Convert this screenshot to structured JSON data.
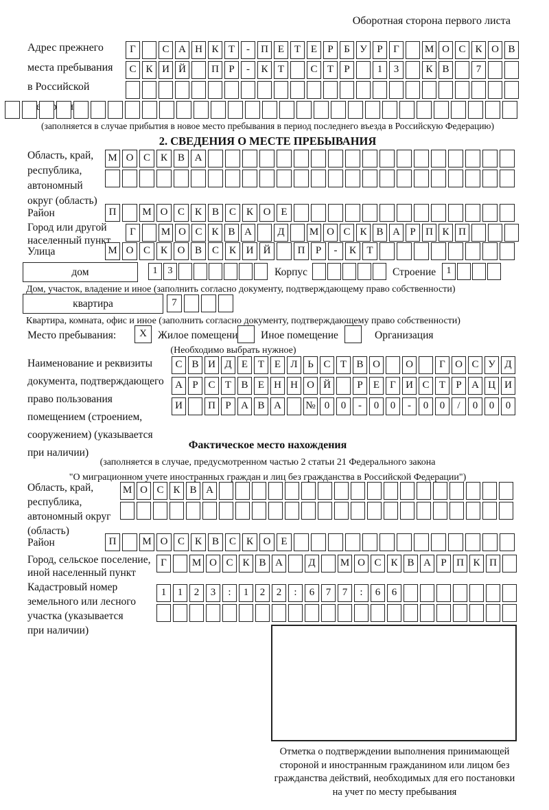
{
  "page": {
    "side_note": "Оборотная сторона первого листа"
  },
  "section1": {
    "label": "Адрес прежнего\nместа пребывания\nв Российской\nФедерации",
    "rows": [
      {
        "chars": "Г САНКТ-ПЕТЕРБУРГ МОСКОВ",
        "len": 24
      },
      {
        "chars": "СКИЙ ПР-КТ СТР 13 КВ 7",
        "len": 24
      },
      {
        "chars": "",
        "len": 24
      },
      {
        "chars": "",
        "len": 30
      }
    ],
    "note": "(заполняется в случае прибытия в новое место пребывания в период последнего въезда в Российскую Федерацию)"
  },
  "section2": {
    "header": "2. СВЕДЕНИЯ О МЕСТЕ ПРЕБЫВАНИЯ",
    "oblast": {
      "label": "Область, край,\nреспублика,\nавтономный\nокруг (область)",
      "rows": [
        {
          "chars": "МОСКВА",
          "len": 24
        },
        {
          "chars": "",
          "len": 24
        }
      ]
    },
    "raion": {
      "label": "Район",
      "row": {
        "chars": "П МОСКВСКОЕ",
        "len": 24
      }
    },
    "gorod": {
      "label": "Город или другой\nнаселенный пункт",
      "row": {
        "chars": "Г МОСКВА Д МОСКВАРПКП",
        "len": 24
      }
    },
    "ulitsa": {
      "label": "Улица",
      "row": {
        "chars": "МОСКОВСКИЙ ПР-КТ",
        "len": 24
      }
    },
    "dom": {
      "box_label": "дом",
      "row": {
        "chars": "13",
        "len": 8
      },
      "korpus_label": "Корпус",
      "korpus_row": {
        "chars": "",
        "len": 5
      },
      "stroenie_label": "Строение",
      "stroenie_row": {
        "chars": "1",
        "len": 4
      },
      "note": "Дом, участок, владение и иное (заполнить согласно документу, подтверждающему право собственности)"
    },
    "kvartira": {
      "box_label": "квартира",
      "row": {
        "chars": "7",
        "len": 4
      },
      "note": "Квартира, комната, офис и иное (заполнить согласно документу, подтверждающему право собственности)"
    },
    "stay_type": {
      "label": "Место пребывания:",
      "options": [
        {
          "label": "Жилое помещение",
          "mark": "X"
        },
        {
          "label": "Иное помещение",
          "mark": ""
        },
        {
          "label": "Организация",
          "mark": ""
        }
      ],
      "note": "(Необходимо выбрать нужное)"
    },
    "document": {
      "label": "Наименование и реквизиты\nдокумента, подтверждающего\nправо пользования\nпомещением (строением,\nсооружением) (указывается\nпри наличии)",
      "rows": [
        {
          "chars": "СВИДЕТЕЛЬСТВО О ГОСУД",
          "len": 21
        },
        {
          "chars": "АРСТВЕННОЙ РЕГИСТРАЦИ",
          "len": 21
        },
        {
          "chars": "И ПРАВА №00-00-00/000",
          "len": 21
        }
      ]
    }
  },
  "section3": {
    "header": "Фактическое место нахождения",
    "note": "(заполняется в случае, предусмотренном частью 2 статьи 21 Федерального закона\n\"О миграционном учете иностранных граждан и лиц без гражданства в Российской Федерации\")",
    "oblast": {
      "label": "Область, край,\nреспублика,\nавтономный округ\n(область)",
      "rows": [
        {
          "chars": "МОСКВА",
          "len": 24
        },
        {
          "chars": "",
          "len": 24
        }
      ]
    },
    "raion": {
      "label": "Район",
      "row": {
        "chars": "П МОСКВСКОЕ",
        "len": 24
      }
    },
    "gorod": {
      "label": "Город, сельское поселение,\nиной населенный пункт",
      "row": {
        "chars": "Г МОСКВА Д МОСКВАРПКП",
        "len": 22
      }
    },
    "kadastr": {
      "label": "Кадастровый номер\nземельного или лесного\nучастка (указывается\nпри наличии)",
      "rows": [
        {
          "chars": "1123:122:677:66",
          "len": 22
        },
        {
          "chars": "",
          "len": 22
        }
      ]
    }
  },
  "stamp": {
    "caption": "Отметка о подтверждении выполнения принимающей\nстороной и иностранным гражданином или лицом без\nгражданства действий, необходимых для его постановки\nна учет по месту пребывания"
  }
}
